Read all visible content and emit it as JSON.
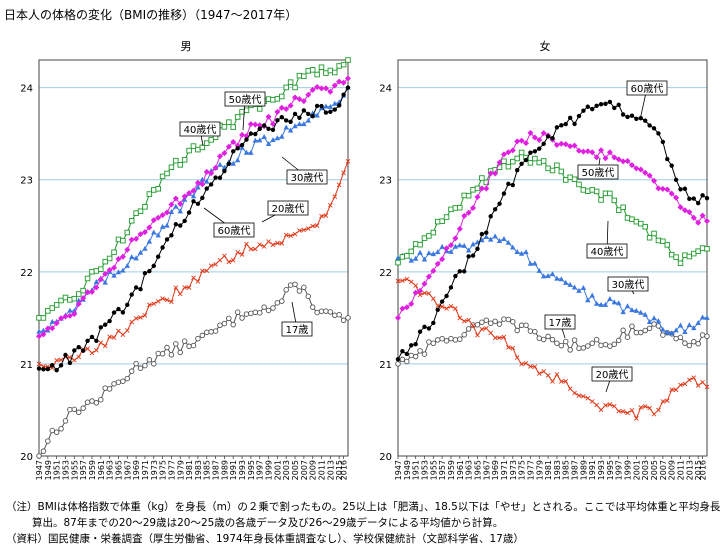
{
  "title": "日本人の体格の変化（BMIの推移）（1947～2017年）",
  "notes": {
    "line1": "（注）BMIは体格指数で体重（kg）を身長（m）の２乗で割ったもの。25以上は「肥満」、18.5以下は「やせ」とされる。ここでは平均体重と平均身長から",
    "line2": "算出。87年までの20～29歳は20～25歳の各歳データ及び26～29歳データによる平均値から計算。",
    "line3": "（資料）国民健康・栄養調査（厚生労働省、1974年身長体重調査なし）、学校保健統計（文部科学省、17歳）"
  },
  "colors": {
    "s17": "#555555",
    "s20": "#e03818",
    "s30": "#3a78e0",
    "s40": "#1e9a2a",
    "s50": "#e020e0",
    "s60": "#000000",
    "grid": "#a0cce6"
  },
  "chart_data": [
    {
      "type": "line",
      "title": "男",
      "x_range": [
        1947,
        2017
      ],
      "ylim": [
        20,
        24.3
      ],
      "yticks": [
        20,
        21,
        22,
        23,
        24
      ],
      "xticks": [
        "1947",
        "1949",
        "1951",
        "1953",
        "1955",
        "1957",
        "1959",
        "1961",
        "1963",
        "1965",
        "1967",
        "1969",
        "1971",
        "1973",
        "1975",
        "1977",
        "1979",
        "1981",
        "1983",
        "1985",
        "1987",
        "1989",
        "1991",
        "1993",
        "1995",
        "1997",
        "1999",
        "2001",
        "2003",
        "2005",
        "2007",
        "2009",
        "2011",
        "2013",
        "2015",
        "2016"
      ],
      "series": [
        {
          "name": "17歳",
          "marker": "circle-open",
          "anchors": [
            [
              1947,
              20.0
            ],
            [
              1950,
              20.25
            ],
            [
              1955,
              20.5
            ],
            [
              1960,
              20.6
            ],
            [
              1965,
              20.8
            ],
            [
              1970,
              21.0
            ],
            [
              1975,
              21.1
            ],
            [
              1980,
              21.2
            ],
            [
              1985,
              21.3
            ],
            [
              1990,
              21.45
            ],
            [
              1995,
              21.6
            ],
            [
              2000,
              21.6
            ],
            [
              2004,
              21.8
            ],
            [
              2006,
              21.85
            ],
            [
              2010,
              21.6
            ],
            [
              2014,
              21.5
            ],
            [
              2017,
              21.5
            ]
          ]
        },
        {
          "name": "20歳代",
          "marker": "cross",
          "anchors": [
            [
              1947,
              21.0
            ],
            [
              1950,
              21.0
            ],
            [
              1955,
              21.05
            ],
            [
              1960,
              21.2
            ],
            [
              1965,
              21.3
            ],
            [
              1970,
              21.55
            ],
            [
              1975,
              21.65
            ],
            [
              1980,
              21.85
            ],
            [
              1985,
              22.0
            ],
            [
              1990,
              22.15
            ],
            [
              1995,
              22.3
            ],
            [
              2000,
              22.3
            ],
            [
              2005,
              22.4
            ],
            [
              2010,
              22.55
            ],
            [
              2013,
              22.7
            ],
            [
              2015,
              23.0
            ],
            [
              2017,
              23.2
            ]
          ]
        },
        {
          "name": "30歳代",
          "marker": "triangle",
          "anchors": [
            [
              1947,
              21.35
            ],
            [
              1950,
              21.45
            ],
            [
              1955,
              21.6
            ],
            [
              1960,
              21.85
            ],
            [
              1965,
              22.0
            ],
            [
              1970,
              22.25
            ],
            [
              1975,
              22.5
            ],
            [
              1980,
              22.75
            ],
            [
              1985,
              23.0
            ],
            [
              1990,
              23.2
            ],
            [
              1995,
              23.35
            ],
            [
              2000,
              23.45
            ],
            [
              2005,
              23.6
            ],
            [
              2010,
              23.75
            ],
            [
              2014,
              23.8
            ],
            [
              2017,
              24.0
            ]
          ]
        },
        {
          "name": "40歳代",
          "marker": "square-open",
          "anchors": [
            [
              1947,
              21.5
            ],
            [
              1950,
              21.55
            ],
            [
              1955,
              21.75
            ],
            [
              1960,
              22.0
            ],
            [
              1965,
              22.3
            ],
            [
              1970,
              22.7
            ],
            [
              1975,
              23.0
            ],
            [
              1980,
              23.25
            ],
            [
              1985,
              23.45
            ],
            [
              1990,
              23.6
            ],
            [
              1995,
              23.75
            ],
            [
              2000,
              23.9
            ],
            [
              2005,
              24.05
            ],
            [
              2010,
              24.2
            ],
            [
              2014,
              24.2
            ],
            [
              2017,
              24.3
            ]
          ]
        },
        {
          "name": "50歳代",
          "marker": "diamond",
          "anchors": [
            [
              1947,
              21.3
            ],
            [
              1950,
              21.4
            ],
            [
              1955,
              21.6
            ],
            [
              1960,
              21.85
            ],
            [
              1965,
              22.15
            ],
            [
              1970,
              22.45
            ],
            [
              1975,
              22.65
            ],
            [
              1980,
              22.8
            ],
            [
              1985,
              23.05
            ],
            [
              1990,
              23.3
            ],
            [
              1995,
              23.55
            ],
            [
              2000,
              23.65
            ],
            [
              2005,
              23.85
            ],
            [
              2010,
              23.95
            ],
            [
              2014,
              24.0
            ],
            [
              2017,
              24.1
            ]
          ]
        },
        {
          "name": "60歳代",
          "marker": "circle",
          "anchors": [
            [
              1947,
              20.95
            ],
            [
              1950,
              20.95
            ],
            [
              1955,
              21.1
            ],
            [
              1960,
              21.3
            ],
            [
              1965,
              21.55
            ],
            [
              1970,
              21.85
            ],
            [
              1975,
              22.25
            ],
            [
              1980,
              22.6
            ],
            [
              1985,
              22.9
            ],
            [
              1990,
              23.2
            ],
            [
              1995,
              23.45
            ],
            [
              2000,
              23.6
            ],
            [
              2005,
              23.7
            ],
            [
              2010,
              23.75
            ],
            [
              2014,
              23.8
            ],
            [
              2017,
              24.0
            ]
          ]
        }
      ],
      "callouts": {
        "s50": "50歳代",
        "s40": "40歳代",
        "s30": "30歳代",
        "s20": "20歳代",
        "s60": "60歳代",
        "s17": "17歳"
      }
    },
    {
      "type": "line",
      "title": "女",
      "x_range": [
        1947,
        2017
      ],
      "ylim": [
        20,
        24.3
      ],
      "yticks": [
        20,
        21,
        22,
        23,
        24
      ],
      "xticks": [
        "1947",
        "1949",
        "1951",
        "1953",
        "1955",
        "1957",
        "1959",
        "1961",
        "1963",
        "1965",
        "1967",
        "1969",
        "1971",
        "1973",
        "1975",
        "1977",
        "1979",
        "1981",
        "1983",
        "1985",
        "1987",
        "1989",
        "1991",
        "1993",
        "1995",
        "1997",
        "1999",
        "2001",
        "2003",
        "2005",
        "2007",
        "2009",
        "2011",
        "2013",
        "2015",
        "2016"
      ],
      "series": [
        {
          "name": "17歳",
          "marker": "circle-open",
          "anchors": [
            [
              1947,
              21.0
            ],
            [
              1950,
              21.1
            ],
            [
              1955,
              21.2
            ],
            [
              1960,
              21.3
            ],
            [
              1965,
              21.4
            ],
            [
              1970,
              21.45
            ],
            [
              1975,
              21.4
            ],
            [
              1980,
              21.3
            ],
            [
              1985,
              21.2
            ],
            [
              1990,
              21.2
            ],
            [
              1995,
              21.25
            ],
            [
              2000,
              21.35
            ],
            [
              2005,
              21.45
            ],
            [
              2010,
              21.25
            ],
            [
              2014,
              21.25
            ],
            [
              2017,
              21.3
            ]
          ]
        },
        {
          "name": "20歳代",
          "marker": "cross",
          "anchors": [
            [
              1947,
              21.9
            ],
            [
              1950,
              21.85
            ],
            [
              1955,
              21.7
            ],
            [
              1960,
              21.55
            ],
            [
              1965,
              21.35
            ],
            [
              1970,
              21.3
            ],
            [
              1975,
              21.05
            ],
            [
              1980,
              20.9
            ],
            [
              1985,
              20.8
            ],
            [
              1990,
              20.6
            ],
            [
              1995,
              20.5
            ],
            [
              2000,
              20.45
            ],
            [
              2005,
              20.5
            ],
            [
              2010,
              20.7
            ],
            [
              2014,
              20.8
            ],
            [
              2017,
              20.75
            ]
          ]
        },
        {
          "name": "30歳代",
          "marker": "triangle",
          "anchors": [
            [
              1947,
              22.15
            ],
            [
              1950,
              22.15
            ],
            [
              1955,
              22.2
            ],
            [
              1960,
              22.25
            ],
            [
              1965,
              22.3
            ],
            [
              1970,
              22.35
            ],
            [
              1975,
              22.2
            ],
            [
              1980,
              22.0
            ],
            [
              1985,
              21.9
            ],
            [
              1990,
              21.75
            ],
            [
              1995,
              21.65
            ],
            [
              2000,
              21.55
            ],
            [
              2005,
              21.45
            ],
            [
              2010,
              21.35
            ],
            [
              2014,
              21.4
            ],
            [
              2017,
              21.5
            ]
          ]
        },
        {
          "name": "40歳代",
          "marker": "square-open",
          "anchors": [
            [
              1947,
              22.1
            ],
            [
              1950,
              22.2
            ],
            [
              1955,
              22.45
            ],
            [
              1960,
              22.7
            ],
            [
              1965,
              22.95
            ],
            [
              1970,
              23.15
            ],
            [
              1975,
              23.25
            ],
            [
              1980,
              23.2
            ],
            [
              1985,
              23.05
            ],
            [
              1990,
              22.9
            ],
            [
              1995,
              22.8
            ],
            [
              2000,
              22.55
            ],
            [
              2005,
              22.4
            ],
            [
              2010,
              22.15
            ],
            [
              2014,
              22.15
            ],
            [
              2017,
              22.25
            ]
          ]
        },
        {
          "name": "50歳代",
          "marker": "diamond",
          "anchors": [
            [
              1947,
              21.5
            ],
            [
              1950,
              21.7
            ],
            [
              1955,
              22.05
            ],
            [
              1960,
              22.4
            ],
            [
              1965,
              22.8
            ],
            [
              1970,
              23.2
            ],
            [
              1975,
              23.45
            ],
            [
              1980,
              23.45
            ],
            [
              1985,
              23.35
            ],
            [
              1990,
              23.3
            ],
            [
              1995,
              23.25
            ],
            [
              2000,
              23.15
            ],
            [
              2005,
              23.0
            ],
            [
              2010,
              22.8
            ],
            [
              2014,
              22.6
            ],
            [
              2017,
              22.55
            ]
          ]
        },
        {
          "name": "60歳代",
          "marker": "circle",
          "anchors": [
            [
              1947,
              21.05
            ],
            [
              1950,
              21.2
            ],
            [
              1955,
              21.5
            ],
            [
              1960,
              21.9
            ],
            [
              1965,
              22.3
            ],
            [
              1970,
              22.75
            ],
            [
              1975,
              23.15
            ],
            [
              1980,
              23.4
            ],
            [
              1985,
              23.6
            ],
            [
              1990,
              23.75
            ],
            [
              1995,
              23.8
            ],
            [
              2000,
              23.7
            ],
            [
              2005,
              23.6
            ],
            [
              2010,
              23.0
            ],
            [
              2014,
              22.75
            ],
            [
              2017,
              22.8
            ]
          ]
        }
      ],
      "callouts": {
        "s60": "60歳代",
        "s50": "50歳代",
        "s40": "40歳代",
        "s30": "30歳代",
        "s17": "17歳",
        "s20": "20歳代"
      }
    }
  ]
}
